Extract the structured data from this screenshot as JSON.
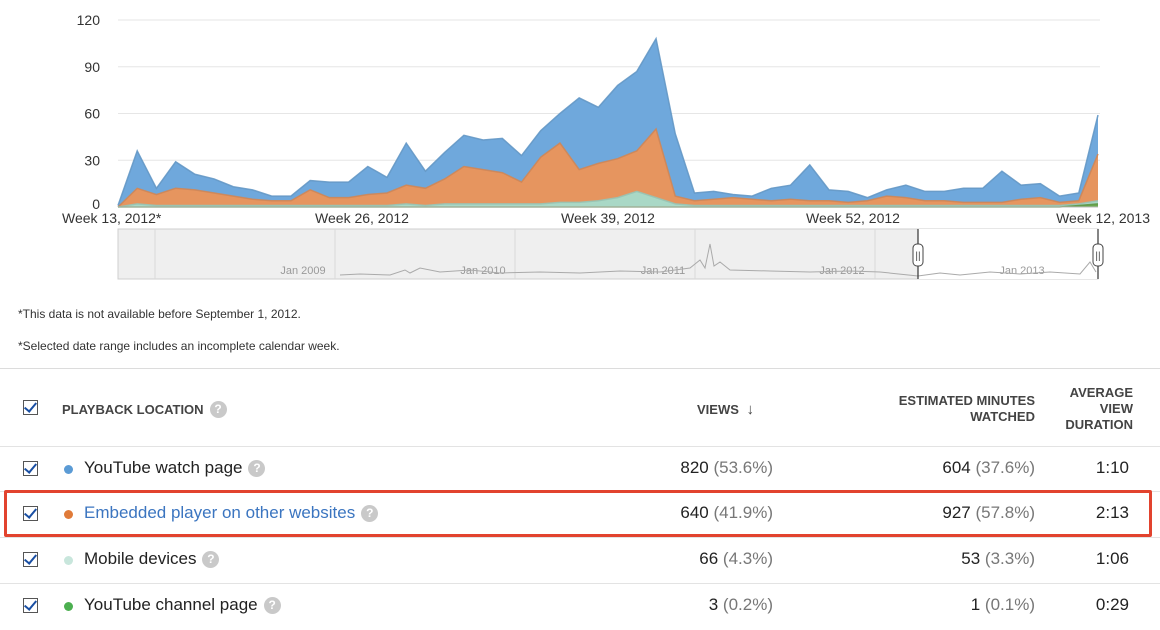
{
  "chart_data": {
    "type": "area",
    "stacked": true,
    "ylim": [
      0,
      120
    ],
    "yticks": [
      "0",
      "30",
      "60",
      "90",
      "120"
    ],
    "xtick_labels": [
      "Week 13, 2012*",
      "Week 26, 2012",
      "Week 39, 2012",
      "Week 52, 2012",
      "Week 12, 2013"
    ],
    "grid": true,
    "series": [
      {
        "name": "YouTube watch page",
        "color": "#6fa8dc",
        "values": [
          1,
          24,
          4,
          17,
          10,
          9,
          6,
          6,
          3,
          3,
          6,
          10,
          10,
          18,
          10,
          27,
          11,
          17,
          20,
          19,
          22,
          17,
          17,
          19,
          46,
          36,
          47,
          51,
          58,
          40,
          5,
          5,
          2,
          2,
          8,
          9,
          23,
          7,
          7,
          2,
          4,
          8,
          6,
          6,
          9,
          9,
          20,
          9,
          9,
          4,
          5,
          25
        ]
      },
      {
        "name": "Embedded player on other websites",
        "color": "#e6955f",
        "values": [
          0,
          10,
          7,
          11,
          10,
          8,
          6,
          4,
          3,
          3,
          10,
          5,
          5,
          7,
          8,
          12,
          11,
          16,
          24,
          22,
          20,
          14,
          30,
          38,
          21,
          24,
          25,
          26,
          44,
          5,
          3,
          4,
          5,
          4,
          3,
          4,
          3,
          3,
          2,
          3,
          6,
          5,
          3,
          3,
          2,
          2,
          2,
          4,
          5,
          2,
          2,
          30
        ]
      },
      {
        "name": "Mobile devices",
        "color": "#a9d8c6",
        "values": [
          0,
          2,
          1,
          1,
          1,
          1,
          1,
          1,
          1,
          1,
          1,
          1,
          1,
          1,
          1,
          2,
          1,
          2,
          2,
          2,
          2,
          2,
          2,
          3,
          3,
          4,
          6,
          10,
          6,
          2,
          1,
          1,
          1,
          1,
          1,
          1,
          1,
          1,
          1,
          1,
          1,
          1,
          1,
          1,
          1,
          1,
          1,
          1,
          1,
          1,
          1,
          2
        ]
      },
      {
        "name": "YouTube channel page",
        "color": "#6aa84f",
        "values": [
          0,
          0,
          0,
          0,
          0,
          0,
          0,
          0,
          0,
          0,
          0,
          0,
          0,
          0,
          0,
          0,
          0,
          0,
          0,
          0,
          0,
          0,
          0,
          0,
          0,
          0,
          0,
          0,
          0,
          0,
          0,
          0,
          0,
          0,
          0,
          0,
          0,
          0,
          0,
          0,
          0,
          0,
          0,
          0,
          0,
          0,
          0,
          0,
          0,
          0,
          1,
          2
        ]
      }
    ],
    "navigator": {
      "labels": [
        "Jan 2009",
        "Jan 2010",
        "Jan 2011",
        "Jan 2012",
        "Jan 2013"
      ],
      "handle_label": "||"
    }
  },
  "notes": {
    "note1": "*This data is not available before September 1, 2012.",
    "note2": "*Selected date range includes an incomplete calendar week."
  },
  "table": {
    "headers": {
      "location": "PLAYBACK LOCATION",
      "views": "VIEWS",
      "views_sort": "↓",
      "minutes_line1": "ESTIMATED MINUTES",
      "minutes_line2": "WATCHED",
      "duration_line1": "AVERAGE",
      "duration_line2": "VIEW",
      "duration_line3": "DURATION"
    },
    "help_glyph": "?",
    "rows": [
      {
        "label": "YouTube watch page",
        "color": "#5b9bd5",
        "views": "820",
        "views_pct": "(53.6%)",
        "minutes": "604",
        "minutes_pct": "(37.6%)",
        "duration": "1:10"
      },
      {
        "label": "Embedded player on other websites",
        "color": "#e07b39",
        "views": "640",
        "views_pct": "(41.9%)",
        "minutes": "927",
        "minutes_pct": "(57.8%)",
        "duration": "2:13"
      },
      {
        "label": "Mobile devices",
        "color": "#c8e6dc",
        "views": "66",
        "views_pct": "(4.3%)",
        "minutes": "53",
        "minutes_pct": "(3.3%)",
        "duration": "1:06"
      },
      {
        "label": "YouTube channel page",
        "color": "#4caf50",
        "views": "3",
        "views_pct": "(0.2%)",
        "minutes": "1",
        "minutes_pct": "(0.1%)",
        "duration": "0:29"
      }
    ]
  }
}
